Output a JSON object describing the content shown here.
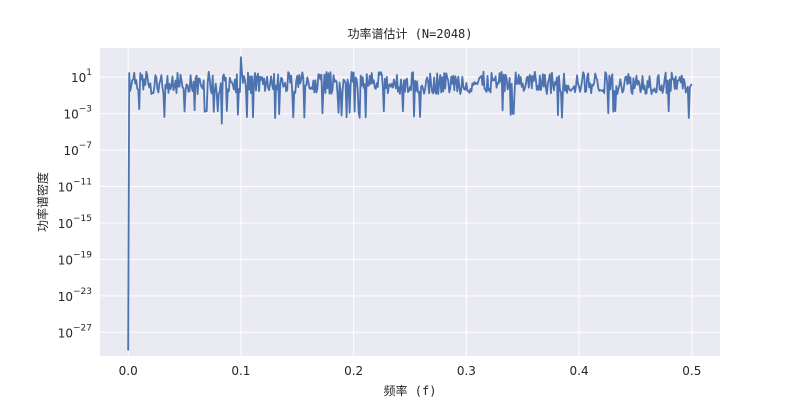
{
  "chart_data": {
    "type": "line",
    "title": "功率谱估计 (N=2048)",
    "xlabel": "频率 (f)",
    "ylabel": "功率谱密度",
    "yscale": "log",
    "grid": true,
    "legend": "none",
    "xlim": [
      -0.025,
      0.525
    ],
    "ylim_log10": [
      -29.6,
      4.2
    ],
    "x_ticks": [
      {
        "value": 0.0,
        "label": "0.0"
      },
      {
        "value": 0.1,
        "label": "0.1"
      },
      {
        "value": 0.2,
        "label": "0.2"
      },
      {
        "value": 0.3,
        "label": "0.3"
      },
      {
        "value": 0.4,
        "label": "0.4"
      },
      {
        "value": 0.5,
        "label": "0.5"
      }
    ],
    "y_ticks": [
      {
        "exp": 1,
        "base": "10",
        "sup": "1"
      },
      {
        "exp": -3,
        "base": "10",
        "sup": "−3"
      },
      {
        "exp": -7,
        "base": "10",
        "sup": "−7"
      },
      {
        "exp": -11,
        "base": "10",
        "sup": "−11"
      },
      {
        "exp": -15,
        "base": "10",
        "sup": "−15"
      },
      {
        "exp": -19,
        "base": "10",
        "sup": "−19"
      },
      {
        "exp": -23,
        "base": "10",
        "sup": "−23"
      },
      {
        "exp": -27,
        "base": "10",
        "sup": "−27"
      }
    ],
    "series": [
      {
        "color": "#4c72b0",
        "x_start": 0.0,
        "x_end": 0.5,
        "dc_log10": -29.0,
        "noise_floor_log10_range": [
          -2.2,
          1.6
        ],
        "peak": {
          "x": 0.1,
          "log10": 3.2
        },
        "dips_log10": [
          {
            "x": 0.083,
            "log10": -4.1
          },
          {
            "x": 0.01,
            "log10": -2.5
          },
          {
            "x": 0.068,
            "log10": -2.8
          }
        ]
      }
    ]
  }
}
